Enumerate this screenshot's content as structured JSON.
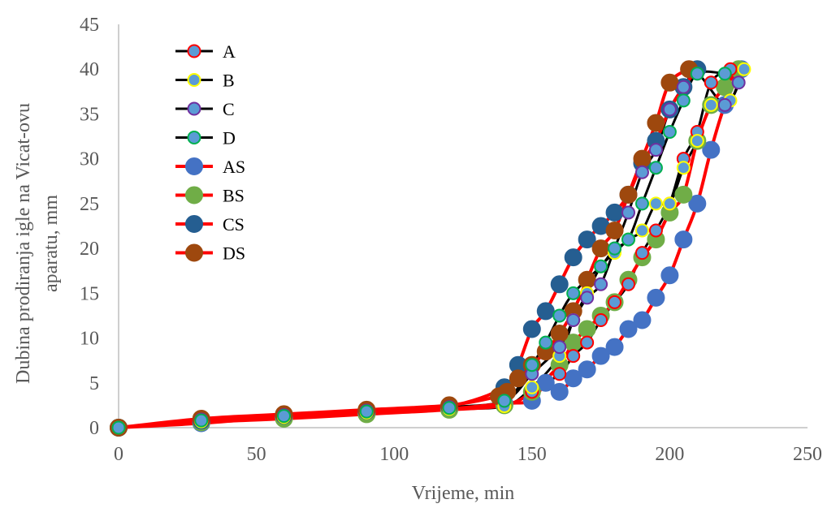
{
  "chart_data": {
    "type": "scatter",
    "title": "",
    "xlabel": "Vrijeme, min",
    "ylabel_lines": [
      "Dubina prodiranja igle na Vicat-ovu",
      "aparatu, mm"
    ],
    "xlim": [
      0,
      250
    ],
    "ylim": [
      0,
      45
    ],
    "xticks": [
      0,
      50,
      100,
      150,
      200,
      250
    ],
    "yticks": [
      0,
      5,
      10,
      15,
      20,
      25,
      30,
      35,
      40,
      45
    ],
    "grid": false,
    "legend_position": "top-left",
    "series": [
      {
        "name": "A",
        "line_color": "#000000",
        "marker_fill": "#5b9bd5",
        "marker_edge": "#ff0000",
        "marker_size": "small",
        "points": [
          [
            0,
            0
          ],
          [
            30,
            0.8
          ],
          [
            60,
            1.3
          ],
          [
            90,
            1.8
          ],
          [
            120,
            2.2
          ],
          [
            140,
            2.5
          ],
          [
            150,
            4
          ],
          [
            160,
            6
          ],
          [
            165,
            8
          ],
          [
            170,
            9.5
          ],
          [
            175,
            12
          ],
          [
            180,
            14
          ],
          [
            185,
            16
          ],
          [
            190,
            19.5
          ],
          [
            195,
            22
          ],
          [
            200,
            25
          ],
          [
            205,
            30
          ],
          [
            210,
            33
          ],
          [
            215,
            38.5
          ],
          [
            222,
            40
          ]
        ]
      },
      {
        "name": "B",
        "line_color": "#000000",
        "marker_fill": "#5b9bd5",
        "marker_edge": "#ffff00",
        "marker_size": "small",
        "points": [
          [
            0,
            0
          ],
          [
            30,
            0.7
          ],
          [
            60,
            1.2
          ],
          [
            90,
            1.7
          ],
          [
            120,
            2.1
          ],
          [
            140,
            2.4
          ],
          [
            150,
            4.5
          ],
          [
            160,
            8
          ],
          [
            165,
            12
          ],
          [
            170,
            15
          ],
          [
            175,
            18
          ],
          [
            180,
            19.5
          ],
          [
            185,
            21
          ],
          [
            190,
            22
          ],
          [
            195,
            25
          ],
          [
            200,
            25
          ],
          [
            205,
            29
          ],
          [
            210,
            32
          ],
          [
            215,
            36
          ],
          [
            222,
            36.5
          ],
          [
            227,
            40
          ]
        ]
      },
      {
        "name": "C",
        "line_color": "#000000",
        "marker_fill": "#5b9bd5",
        "marker_edge": "#7030a0",
        "marker_size": "small",
        "points": [
          [
            0,
            0
          ],
          [
            30,
            0.9
          ],
          [
            60,
            1.4
          ],
          [
            90,
            1.9
          ],
          [
            120,
            2.3
          ],
          [
            140,
            3
          ],
          [
            150,
            6
          ],
          [
            160,
            9
          ],
          [
            165,
            12
          ],
          [
            170,
            14.5
          ],
          [
            175,
            16
          ],
          [
            180,
            20
          ],
          [
            185,
            24
          ],
          [
            190,
            28.5
          ],
          [
            195,
            31
          ],
          [
            200,
            35.5
          ],
          [
            205,
            38
          ],
          [
            210,
            39.5
          ],
          [
            220,
            36
          ],
          [
            225,
            38.5
          ]
        ]
      },
      {
        "name": "D",
        "line_color": "#000000",
        "marker_fill": "#5b9bd5",
        "marker_edge": "#00b050",
        "marker_size": "small",
        "points": [
          [
            0,
            0
          ],
          [
            30,
            0.8
          ],
          [
            60,
            1.3
          ],
          [
            90,
            1.8
          ],
          [
            120,
            2.2
          ],
          [
            140,
            3
          ],
          [
            150,
            7
          ],
          [
            155,
            9.5
          ],
          [
            160,
            12.5
          ],
          [
            165,
            15
          ],
          [
            175,
            18
          ],
          [
            180,
            20
          ],
          [
            185,
            21
          ],
          [
            190,
            25
          ],
          [
            195,
            29
          ],
          [
            200,
            33
          ],
          [
            205,
            36.5
          ],
          [
            210,
            39.5
          ],
          [
            220,
            39.5
          ]
        ]
      },
      {
        "name": "AS",
        "line_color": "#ff0000",
        "marker_fill": "#4472c4",
        "marker_edge": "#4472c4",
        "marker_size": "large",
        "points": [
          [
            0,
            0
          ],
          [
            30,
            0.5
          ],
          [
            60,
            1.2
          ],
          [
            90,
            1.6
          ],
          [
            120,
            2.1
          ],
          [
            140,
            2.7
          ],
          [
            150,
            3
          ],
          [
            155,
            5
          ],
          [
            160,
            4
          ],
          [
            165,
            5.5
          ],
          [
            170,
            6.5
          ],
          [
            175,
            8
          ],
          [
            180,
            9
          ],
          [
            185,
            11
          ],
          [
            190,
            12
          ],
          [
            195,
            14.5
          ],
          [
            200,
            17
          ],
          [
            205,
            21
          ],
          [
            210,
            25
          ],
          [
            215,
            31
          ],
          [
            220,
            36
          ],
          [
            226,
            40
          ]
        ]
      },
      {
        "name": "BS",
        "line_color": "#ff0000",
        "marker_fill": "#70ad47",
        "marker_edge": "#70ad47",
        "marker_size": "large",
        "points": [
          [
            0,
            0
          ],
          [
            30,
            0.6
          ],
          [
            60,
            1
          ],
          [
            90,
            1.5
          ],
          [
            120,
            2
          ],
          [
            140,
            2.5
          ],
          [
            150,
            4
          ],
          [
            160,
            7
          ],
          [
            165,
            9.5
          ],
          [
            170,
            11
          ],
          [
            175,
            12.5
          ],
          [
            180,
            14
          ],
          [
            185,
            16.5
          ],
          [
            190,
            19
          ],
          [
            195,
            21
          ],
          [
            200,
            24
          ],
          [
            205,
            26
          ],
          [
            210,
            32
          ],
          [
            215,
            36
          ],
          [
            220,
            38
          ],
          [
            225,
            40
          ]
        ]
      },
      {
        "name": "CS",
        "line_color": "#ff0000",
        "marker_fill": "#255e91",
        "marker_edge": "#255e91",
        "marker_size": "large",
        "points": [
          [
            0,
            0
          ],
          [
            30,
            0.8
          ],
          [
            60,
            1.4
          ],
          [
            90,
            1.9
          ],
          [
            120,
            2.4
          ],
          [
            140,
            4.5
          ],
          [
            145,
            7
          ],
          [
            150,
            11
          ],
          [
            155,
            13
          ],
          [
            160,
            16
          ],
          [
            165,
            19
          ],
          [
            170,
            21
          ],
          [
            175,
            22.5
          ],
          [
            180,
            24
          ],
          [
            185,
            26
          ],
          [
            190,
            29.5
          ],
          [
            195,
            32
          ],
          [
            200,
            35.5
          ],
          [
            205,
            38
          ],
          [
            210,
            40
          ]
        ]
      },
      {
        "name": "DS",
        "line_color": "#ff0000",
        "marker_fill": "#9e480e",
        "marker_edge": "#9e480e",
        "marker_size": "large",
        "points": [
          [
            0,
            0
          ],
          [
            30,
            1
          ],
          [
            60,
            1.5
          ],
          [
            90,
            2
          ],
          [
            120,
            2.5
          ],
          [
            138,
            3.5
          ],
          [
            141,
            4
          ],
          [
            145,
            5.5
          ],
          [
            150,
            7
          ],
          [
            155,
            8.5
          ],
          [
            160,
            10.5
          ],
          [
            165,
            13
          ],
          [
            170,
            16.5
          ],
          [
            175,
            20
          ],
          [
            180,
            22
          ],
          [
            185,
            26
          ],
          [
            190,
            30
          ],
          [
            195,
            34
          ],
          [
            200,
            38.5
          ],
          [
            207,
            40
          ]
        ]
      }
    ]
  }
}
